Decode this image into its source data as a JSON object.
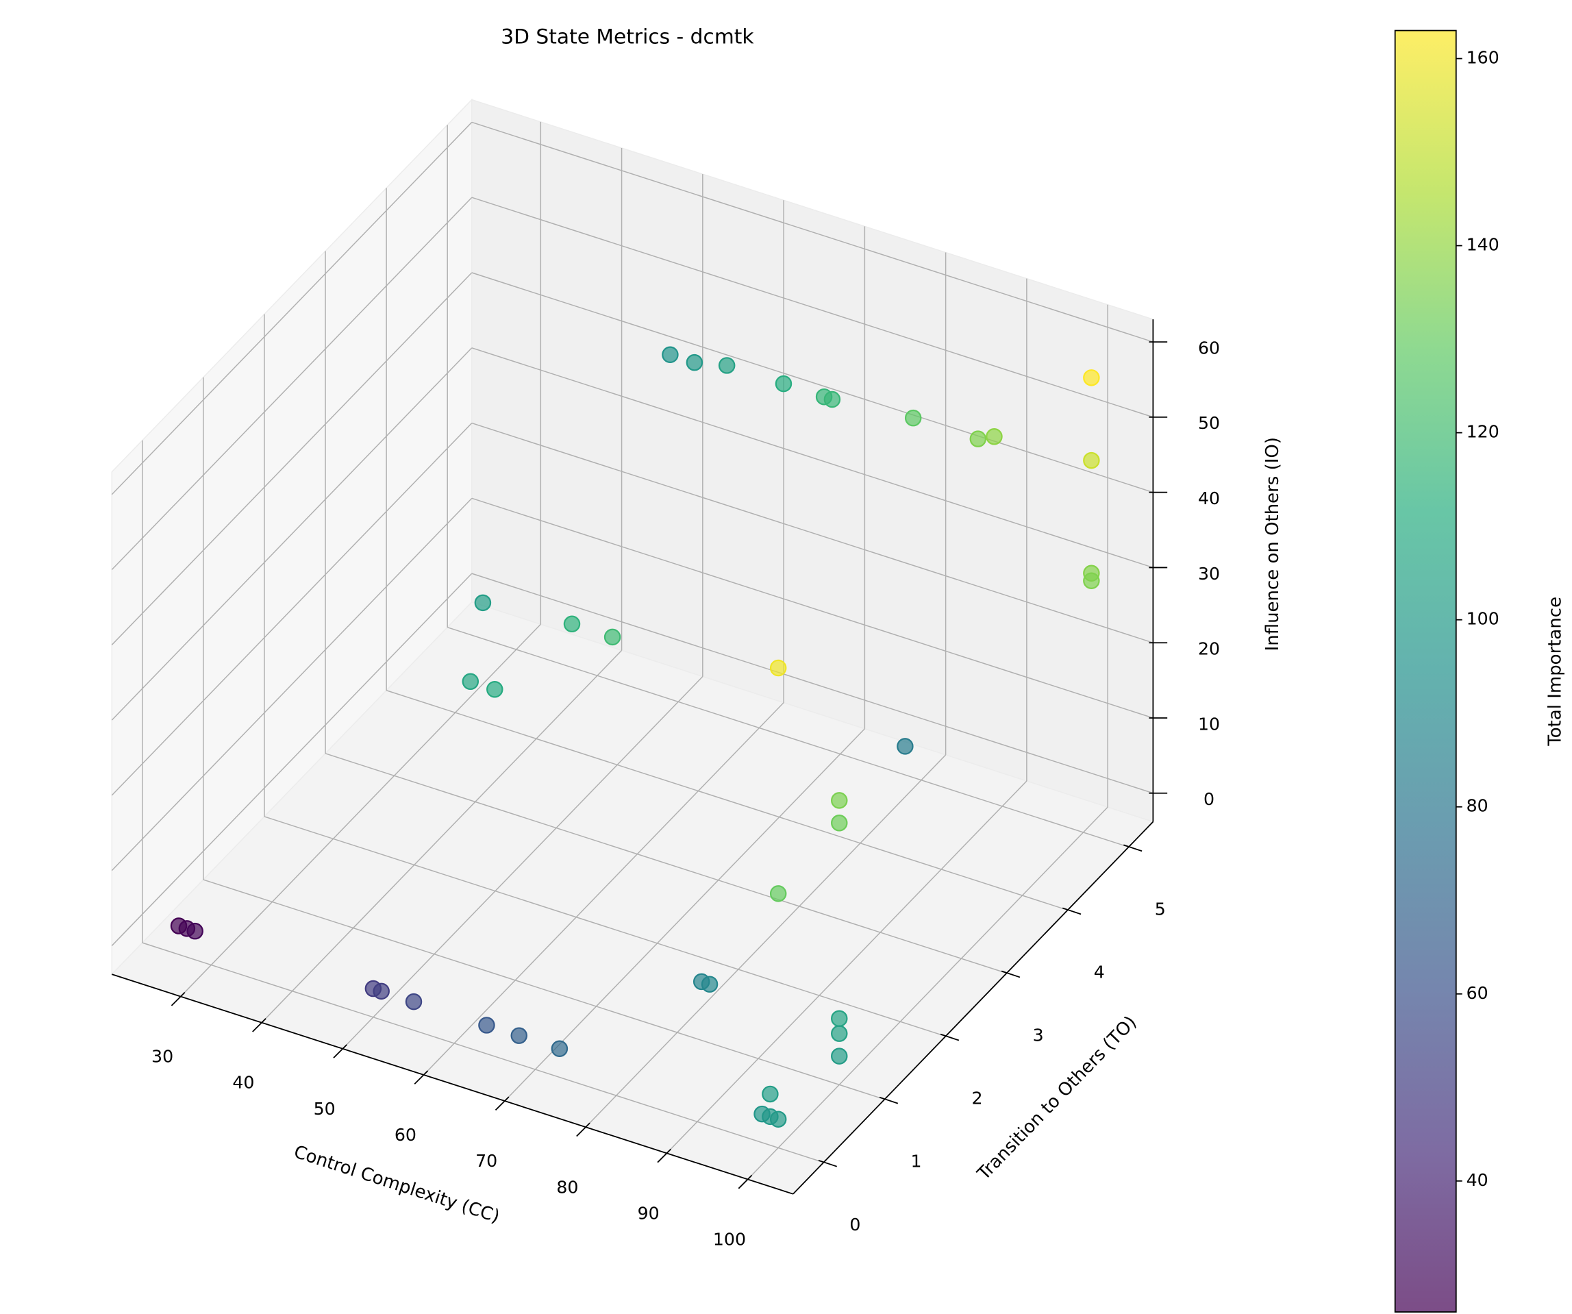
{
  "chart_data": {
    "type": "scatter3d",
    "title": "3D State Metrics - dcmtk",
    "xlabel": "Control Complexity (CC)",
    "ylabel": "Transition to Others (TO)",
    "zlabel": "Influence on Others (IO)",
    "colorbar_label": "Total Importance",
    "colormap": "viridis",
    "grid": true,
    "x": [
      26,
      27,
      28,
      50,
      51,
      55,
      64,
      68,
      73,
      83,
      84,
      100,
      100,
      100,
      99,
      100,
      99,
      98,
      100,
      100,
      100,
      78,
      56,
      67,
      72,
      62,
      65,
      100,
      49,
      52,
      56,
      63,
      68,
      69,
      79,
      87,
      89,
      101,
      101,
      101,
      101
    ],
    "y": [
      0,
      0,
      0,
      0,
      0,
      0,
      0,
      0,
      0,
      1,
      1,
      1,
      1,
      1,
      0,
      0,
      0,
      0,
      0,
      1,
      1,
      5,
      1,
      1,
      1,
      0,
      0,
      0,
      5,
      5,
      5,
      5,
      5,
      5,
      5,
      5,
      5,
      5,
      5,
      5,
      5
    ],
    "z": [
      0,
      0,
      0,
      0,
      0,
      0,
      0,
      0,
      0,
      4,
      4,
      5,
      3,
      0,
      3,
      0,
      0,
      0,
      30,
      31,
      34,
      0,
      45,
      46,
      46,
      45,
      45,
      60,
      42,
      42,
      43,
      43,
      43,
      43,
      44,
      44,
      45,
      57,
      46,
      31,
      30
    ],
    "color_values": [
      26,
      27,
      28,
      50,
      51,
      55,
      64,
      68,
      73,
      88,
      89,
      106,
      104,
      101,
      102,
      100,
      99,
      98,
      130,
      132,
      135,
      83,
      102,
      114,
      119,
      107,
      110,
      160,
      96,
      99,
      104,
      111,
      116,
      117,
      128,
      136,
      139,
      163,
      152,
      137,
      136
    ],
    "xlim": [
      21.5,
      105.6
    ],
    "ylim": [
      -0.5,
      5.4
    ],
    "zlim": [
      -3.8,
      63
    ],
    "xticks": [
      30,
      40,
      50,
      60,
      70,
      80,
      90,
      100
    ],
    "yticks": [
      0,
      1,
      2,
      3,
      4,
      5
    ],
    "zticks": [
      0,
      10,
      20,
      30,
      40,
      50,
      60
    ],
    "clim": [
      26,
      163
    ],
    "cticks": [
      40,
      60,
      80,
      100,
      120,
      140,
      160
    ]
  }
}
